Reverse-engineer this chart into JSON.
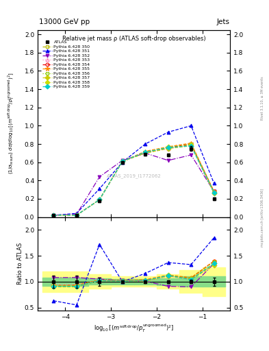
{
  "title_top": "13000 GeV pp",
  "title_right": "Jets",
  "plot_title": "Relative jet mass ρ (ATLAS soft-drop observables)",
  "watermark": "ATLAS_2019_I1772062",
  "right_label_top": "Rivet 3.1.10, ≥ 3M events",
  "right_label_bot": "mcplots.cern.ch [arXiv:1306.3436]",
  "xlim": [
    -4.6,
    -0.4
  ],
  "ylim_main": [
    0.0,
    2.05
  ],
  "ylim_ratio": [
    0.44,
    2.25
  ],
  "x": [
    -4.25,
    -3.75,
    -3.25,
    -2.75,
    -2.25,
    -1.75,
    -1.25,
    -0.75
  ],
  "atlas_y": [
    0.02,
    0.02,
    0.18,
    0.6,
    0.69,
    0.68,
    0.75,
    0.2
  ],
  "atlas_yerr": [
    0.005,
    0.005,
    0.015,
    0.015,
    0.015,
    0.015,
    0.025,
    0.015
  ],
  "atlas_ratio_err_inner": [
    0.08,
    0.08,
    0.06,
    0.05,
    0.05,
    0.07,
    0.1,
    0.1
  ],
  "atlas_ratio_err_outer": [
    0.2,
    0.2,
    0.14,
    0.1,
    0.1,
    0.14,
    0.22,
    0.28
  ],
  "py350_y": [
    0.02,
    0.02,
    0.19,
    0.61,
    0.7,
    0.76,
    0.79,
    0.27
  ],
  "py351_y": [
    0.02,
    0.04,
    0.31,
    0.6,
    0.8,
    0.93,
    1.0,
    0.37
  ],
  "py352_y": [
    0.02,
    0.03,
    0.44,
    0.62,
    0.7,
    0.62,
    0.68,
    0.28
  ],
  "py353_y": [
    0.02,
    0.02,
    0.19,
    0.61,
    0.7,
    0.75,
    0.79,
    0.27
  ],
  "py354_y": [
    0.02,
    0.02,
    0.19,
    0.61,
    0.71,
    0.76,
    0.8,
    0.28
  ],
  "py355_y": [
    0.02,
    0.02,
    0.19,
    0.61,
    0.72,
    0.77,
    0.81,
    0.28
  ],
  "py356_y": [
    0.02,
    0.02,
    0.19,
    0.61,
    0.71,
    0.76,
    0.8,
    0.27
  ],
  "py357_y": [
    0.02,
    0.02,
    0.19,
    0.61,
    0.7,
    0.75,
    0.78,
    0.26
  ],
  "py358_y": [
    0.02,
    0.02,
    0.19,
    0.61,
    0.71,
    0.77,
    0.79,
    0.27
  ],
  "py359_y": [
    0.02,
    0.02,
    0.19,
    0.61,
    0.71,
    0.76,
    0.78,
    0.27
  ],
  "py350_ratio": [
    0.9,
    0.9,
    1.02,
    1.01,
    1.01,
    1.12,
    1.05,
    1.35
  ],
  "py351_ratio": [
    0.63,
    0.55,
    1.72,
    1.0,
    1.16,
    1.37,
    1.33,
    1.85
  ],
  "py352_ratio": [
    1.08,
    1.08,
    1.05,
    1.02,
    1.01,
    0.91,
    0.9,
    1.35
  ],
  "py353_ratio": [
    0.95,
    0.95,
    1.02,
    1.01,
    1.01,
    1.1,
    1.05,
    1.35
  ],
  "py354_ratio": [
    0.92,
    0.93,
    1.03,
    1.02,
    1.03,
    1.12,
    1.07,
    1.4
  ],
  "py355_ratio": [
    0.93,
    0.93,
    1.03,
    1.02,
    1.04,
    1.13,
    1.08,
    1.4
  ],
  "py356_ratio": [
    0.91,
    0.92,
    1.03,
    1.02,
    1.02,
    1.12,
    1.07,
    1.38
  ],
  "py357_ratio": [
    0.9,
    0.9,
    1.02,
    1.01,
    1.01,
    1.11,
    1.04,
    1.32
  ],
  "py358_ratio": [
    0.92,
    0.92,
    1.02,
    1.01,
    1.02,
    1.13,
    1.05,
    1.35
  ],
  "py359_ratio": [
    0.91,
    0.91,
    1.02,
    1.01,
    1.02,
    1.12,
    1.04,
    1.35
  ],
  "colors": {
    "py350": "#b8b800",
    "py351": "#0000ee",
    "py352": "#8800bb",
    "py353": "#ff88bb",
    "py354": "#ee0000",
    "py355": "#ff8800",
    "py356": "#88cc00",
    "py357": "#cccc00",
    "py358": "#ccdd00",
    "py359": "#00cccc"
  },
  "markers": {
    "py350": "s",
    "py351": "^",
    "py352": "v",
    "py353": "^",
    "py354": "o",
    "py355": "*",
    "py356": "s",
    "py357": "D",
    "py358": "D",
    "py359": "D"
  },
  "open_markers": [
    "py350",
    "py353",
    "py354",
    "py356"
  ],
  "linestyles": {
    "py350": "--",
    "py351": "--",
    "py352": "-.",
    "py353": ":",
    "py354": "--",
    "py355": "--",
    "py356": ":",
    "py357": "--",
    "py358": ":",
    "py359": "--"
  },
  "py_numbers": [
    "350",
    "351",
    "352",
    "353",
    "354",
    "355",
    "356",
    "357",
    "358",
    "359"
  ]
}
